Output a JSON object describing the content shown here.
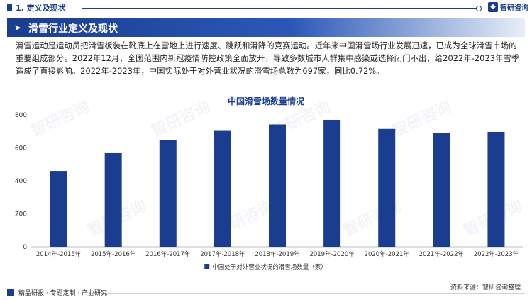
{
  "header": {
    "section_title": "1. 定义及现状",
    "logo_text": "智研咨询"
  },
  "banner": {
    "title": "滑雪行业定义及现状"
  },
  "intro_text": "滑雪运动是运动员把滑雪板装在靴底上在雪地上进行速度、跳跃和滑降的竞赛运动。近年来中国滑雪场行业发展迅速，已成为全球滑雪市场的重要组成部分。2022年12月，全国范围内新冠疫情防控政策全面放开，导致多数城市人群集中感染或选择闭门不出，给2022年-2023年雪季造成了直接影响。2022年-2023年，中国实际处于对外营业状况的滑雪场总数为697家，同比0.72%。",
  "watermark_text": "智研咨询",
  "chart_data": {
    "type": "bar",
    "title": "中国滑雪场数量情况",
    "categories": [
      "2014年-2015年",
      "2015年-2016年",
      "2016年-2017年",
      "2017年-2018年",
      "2018年-2019年",
      "2019年-2020年",
      "2020年-2021年",
      "2021年-2022年",
      "2022年-2023年"
    ],
    "series": [
      {
        "name": "中国处于对外营业状况的滑雪场数量（家）",
        "values": [
          460,
          568,
          646,
          703,
          742,
          770,
          715,
          692,
          697
        ]
      }
    ],
    "ylim": [
      0,
      800
    ],
    "yticks": [
      0,
      200,
      400,
      600,
      800
    ],
    "grid": false,
    "legend_position": "bottom",
    "bar_color": "#1a3d8f"
  },
  "source": "资料来源：智研咨询整理",
  "footer": {
    "text": "精品研报 · 专题定制 · 产业研究"
  },
  "colors": {
    "primary": "#1a3d8f"
  }
}
